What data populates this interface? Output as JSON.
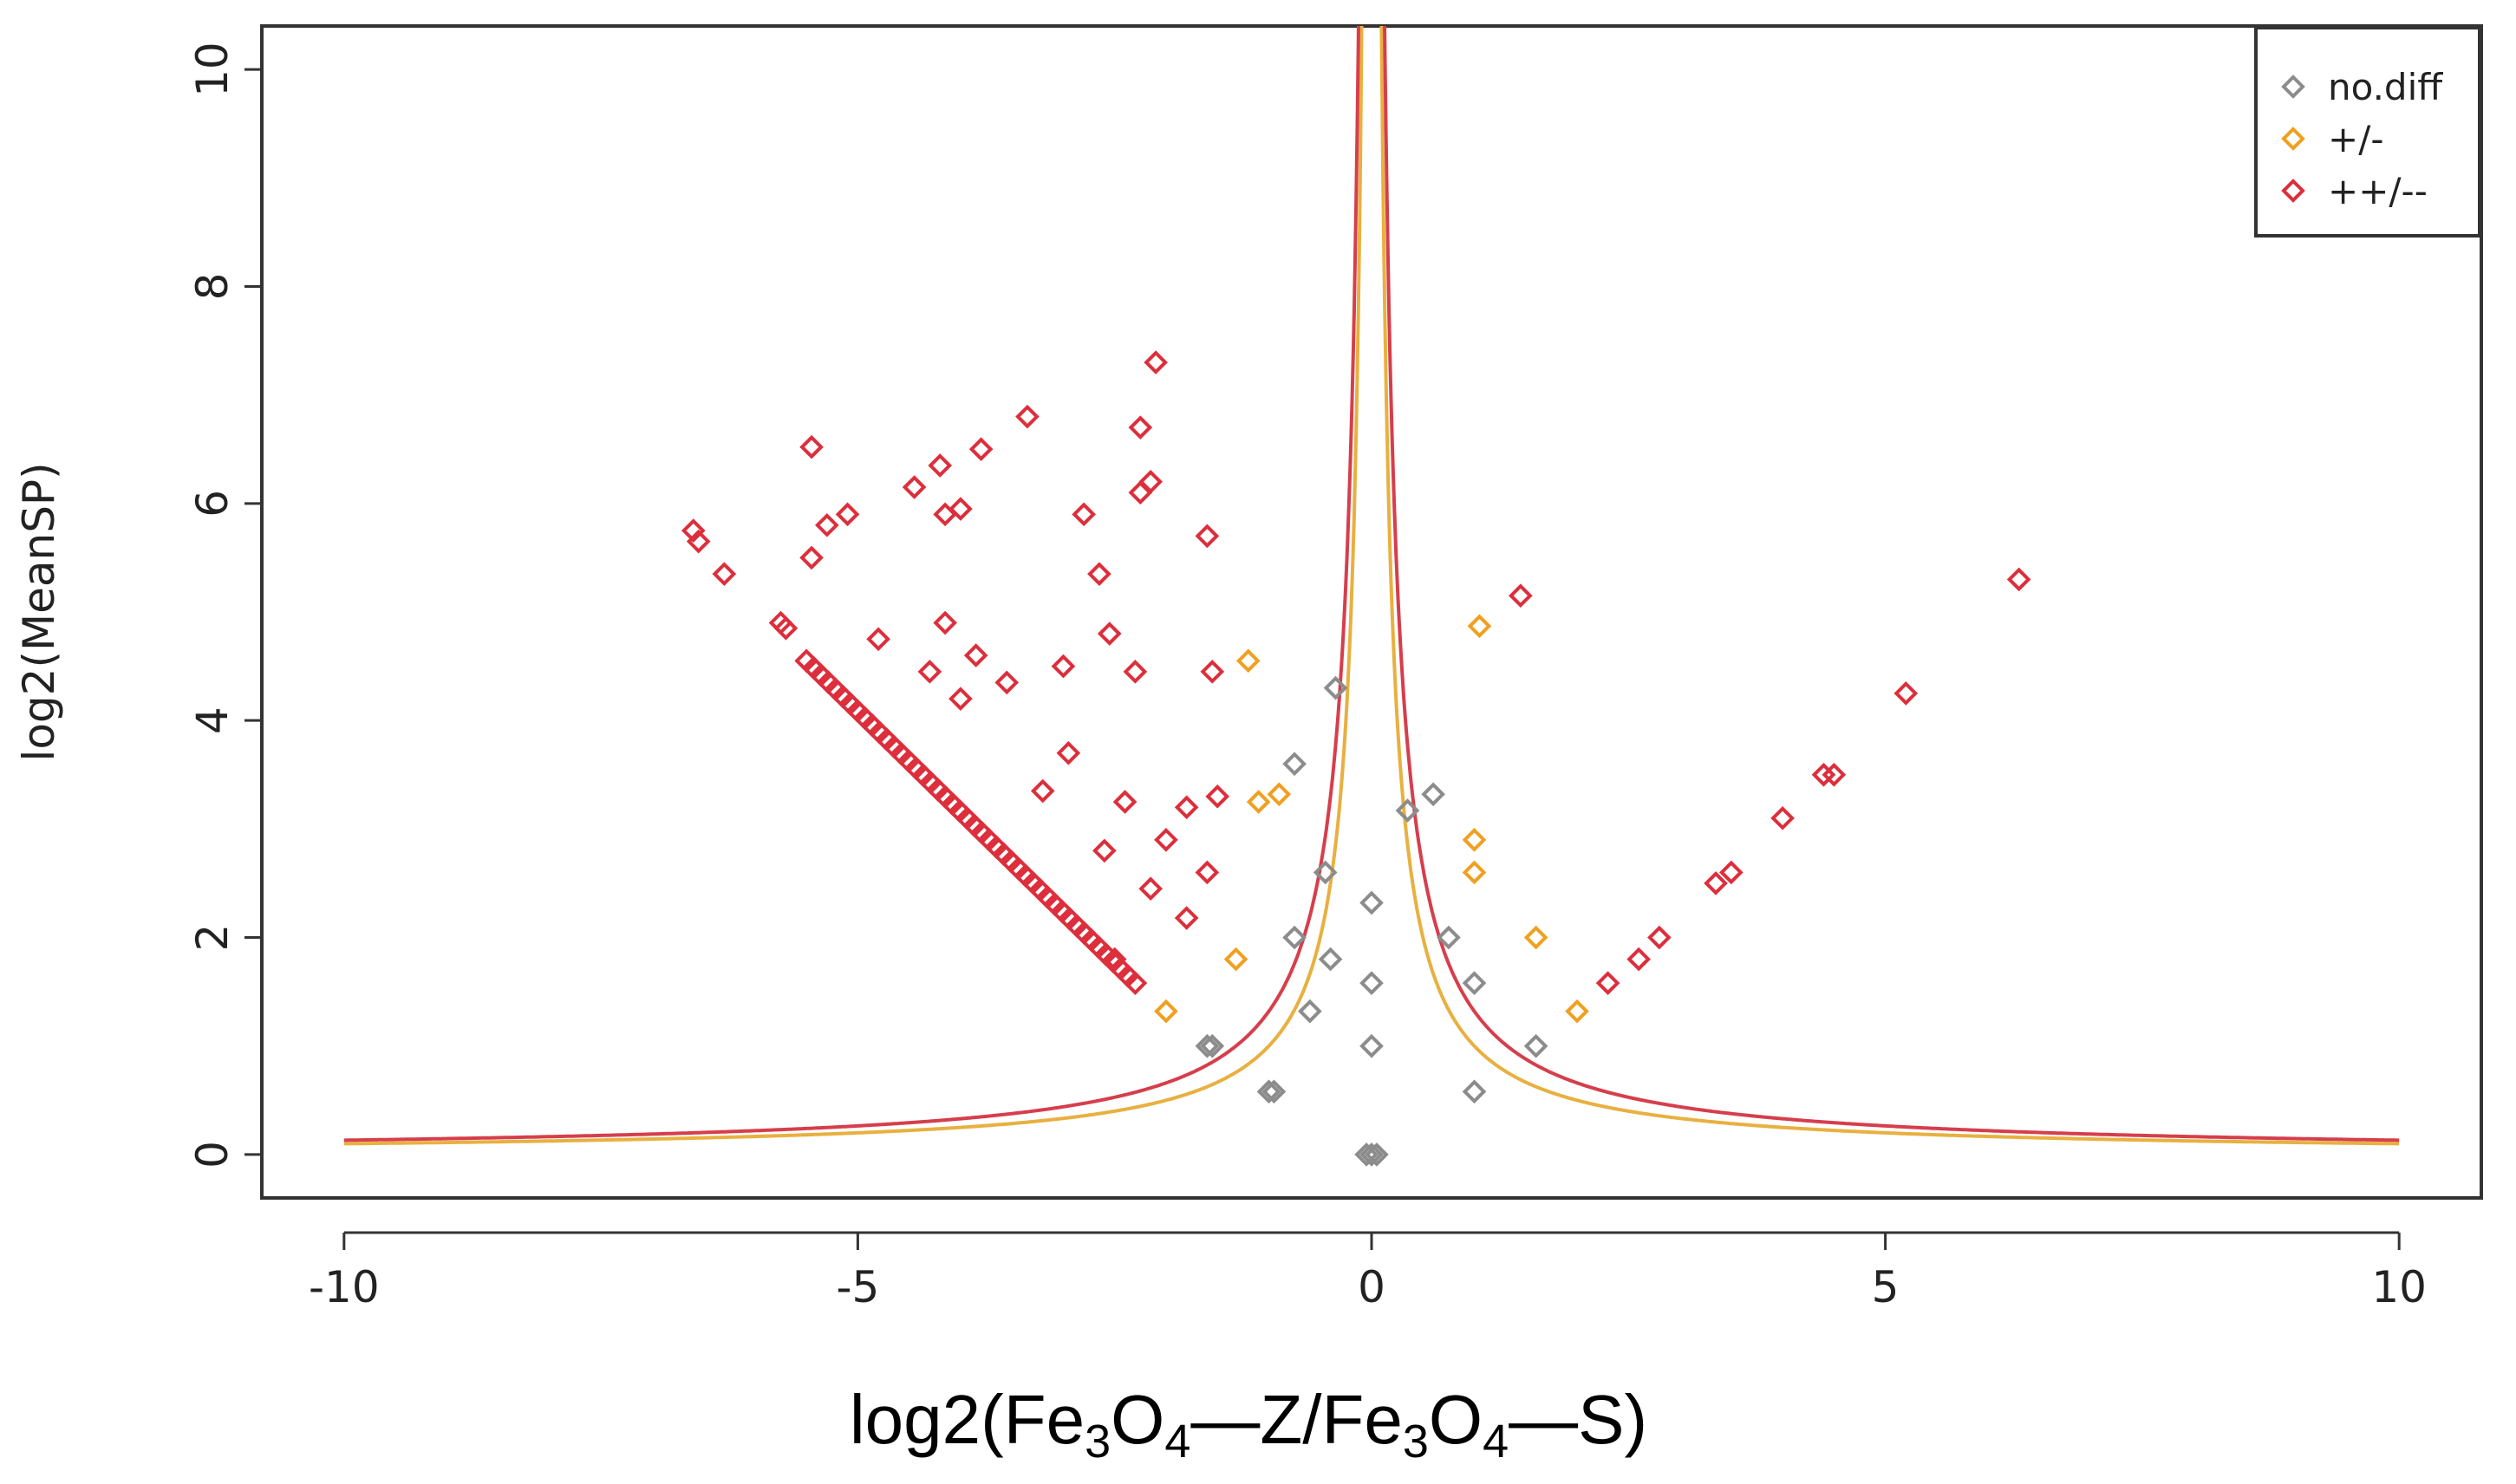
{
  "chart_data": {
    "type": "scatter",
    "xlabel": {
      "prefix": "log2(Fe",
      "sub1": "3",
      "mid1": "O",
      "sub2": "4",
      "mid2": "—Z/Fe",
      "sub3": "3",
      "mid3": "O",
      "sub4": "4",
      "suffix": "—S)"
    },
    "ylabel": "log2(MeanSP)",
    "xlim": [
      -10.8,
      10.8
    ],
    "ylim": [
      -0.4,
      10.4
    ],
    "x_ticks": [
      -10,
      -5,
      0,
      5,
      10
    ],
    "x_tick_labels": [
      "-10",
      "-5",
      "0",
      "5",
      "10"
    ],
    "y_ticks": [
      0,
      2,
      4,
      6,
      8,
      10
    ],
    "y_tick_labels": [
      "0",
      "2",
      "4",
      "6",
      "8",
      "10"
    ],
    "colors": {
      "nodiff": "#8c8c8c",
      "pm": "#f0a020",
      "pp": "#dd2e3c",
      "threshold_pm": "#e8b040",
      "threshold_pp": "#d63e4c",
      "axis": "#333333"
    },
    "legend": {
      "position": "top-right",
      "entries": [
        {
          "label": "no.diff",
          "series": "nodiff"
        },
        {
          "label": "+/-",
          "series": "pm"
        },
        {
          "label": "++/--",
          "series": "pp"
        }
      ]
    },
    "threshold_curves": [
      {
        "name": "threshold-pm",
        "color": "threshold_pm",
        "k": 1.0
      },
      {
        "name": "threshold-pp",
        "color": "threshold_pp",
        "k": 1.32
      }
    ],
    "series": [
      {
        "name": "no.diff",
        "key": "nodiff",
        "points": [
          [
            -1.6,
            1.0
          ],
          [
            -1.55,
            1.0
          ],
          [
            -1.0,
            0.58
          ],
          [
            -0.95,
            0.58
          ],
          [
            -0.75,
            3.6
          ],
          [
            -0.75,
            2.0
          ],
          [
            -0.6,
            1.32
          ],
          [
            -0.45,
            2.6
          ],
          [
            -0.4,
            1.8
          ],
          [
            -0.35,
            4.3
          ],
          [
            0.0,
            2.32
          ],
          [
            0.0,
            1.58
          ],
          [
            0.0,
            1.0
          ],
          [
            0.0,
            0.0
          ],
          [
            -0.05,
            0.0
          ],
          [
            0.05,
            0.0
          ],
          [
            0.35,
            3.17
          ],
          [
            0.6,
            3.32
          ],
          [
            0.75,
            2.0
          ],
          [
            1.0,
            1.58
          ],
          [
            1.0,
            0.58
          ],
          [
            1.6,
            1.0
          ]
        ]
      },
      {
        "name": "+/-",
        "key": "pm",
        "points": [
          [
            -2.0,
            1.32
          ],
          [
            -1.32,
            1.8
          ],
          [
            -1.2,
            4.55
          ],
          [
            -1.1,
            3.25
          ],
          [
            -0.9,
            3.32
          ],
          [
            1.0,
            2.9
          ],
          [
            1.0,
            2.6
          ],
          [
            1.05,
            4.87
          ],
          [
            1.6,
            2.0
          ],
          [
            2.0,
            1.32
          ]
        ]
      },
      {
        "name": "++/--",
        "key": "pp",
        "points": [
          [
            -6.6,
            5.75
          ],
          [
            -6.55,
            5.65
          ],
          [
            -6.3,
            5.35
          ],
          [
            -5.75,
            4.9
          ],
          [
            -5.7,
            4.85
          ],
          [
            -5.45,
            6.52
          ],
          [
            -5.45,
            5.5
          ],
          [
            -5.3,
            5.8
          ],
          [
            -5.1,
            5.9
          ],
          [
            -4.8,
            4.75
          ],
          [
            -4.45,
            6.15
          ],
          [
            -4.3,
            4.45
          ],
          [
            -4.2,
            6.35
          ],
          [
            -4.15,
            5.9
          ],
          [
            -4.15,
            4.9
          ],
          [
            -4.0,
            5.95
          ],
          [
            -4.0,
            4.2
          ],
          [
            -3.85,
            4.6
          ],
          [
            -3.8,
            6.5
          ],
          [
            -3.55,
            4.35
          ],
          [
            -3.35,
            6.8
          ],
          [
            -3.2,
            3.35
          ],
          [
            -3.0,
            4.5
          ],
          [
            -2.95,
            3.7
          ],
          [
            -2.8,
            5.9
          ],
          [
            -2.65,
            5.35
          ],
          [
            -2.6,
            2.8
          ],
          [
            -2.55,
            4.8
          ],
          [
            -2.5,
            1.8
          ],
          [
            -2.4,
            3.25
          ],
          [
            -2.3,
            4.45
          ],
          [
            -2.25,
            6.7
          ],
          [
            -2.25,
            6.1
          ],
          [
            -2.15,
            6.2
          ],
          [
            -2.15,
            2.45
          ],
          [
            -2.1,
            7.3
          ],
          [
            -2.0,
            2.9
          ],
          [
            -1.8,
            3.2
          ],
          [
            -1.8,
            2.18
          ],
          [
            -1.6,
            5.7
          ],
          [
            -1.6,
            2.6
          ],
          [
            -1.55,
            4.45
          ],
          [
            -1.5,
            3.3
          ],
          [
            1.45,
            5.15
          ],
          [
            2.3,
            1.58
          ],
          [
            2.6,
            1.8
          ],
          [
            2.8,
            2.0
          ],
          [
            3.35,
            2.5
          ],
          [
            3.5,
            2.6
          ],
          [
            4.0,
            3.1
          ],
          [
            4.4,
            3.5
          ],
          [
            4.5,
            3.5
          ],
          [
            5.2,
            4.25
          ],
          [
            6.3,
            5.3
          ]
        ],
        "diagonal": {
          "from": [
            -5.5,
            4.55
          ],
          "to": [
            -2.3,
            1.58
          ],
          "count": 46
        }
      }
    ]
  }
}
